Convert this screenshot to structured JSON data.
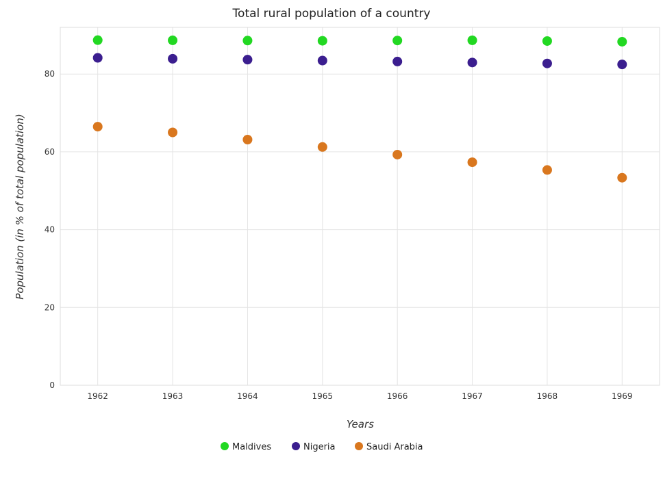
{
  "chart_data": {
    "type": "scatter",
    "title": "Total rural population of a country",
    "xlabel": "Years",
    "ylabel": "Population (in % of total population)",
    "categories": [
      "1962",
      "1963",
      "1964",
      "1965",
      "1966",
      "1967",
      "1968",
      "1969"
    ],
    "ylim": [
      0,
      92
    ],
    "yticks": [
      "0",
      "20",
      "40",
      "60",
      "80"
    ],
    "grid": true,
    "legend_position": "bottom-center",
    "series": [
      {
        "name": "Maldives",
        "color": "#22d822",
        "values": [
          88.72,
          88.67,
          88.61,
          88.55,
          88.62,
          88.68,
          88.49,
          88.31
        ]
      },
      {
        "name": "Nigeria",
        "color": "#3b1e8f",
        "values": [
          84.17,
          83.93,
          83.7,
          83.46,
          83.22,
          82.97,
          82.73,
          82.48
        ]
      },
      {
        "name": "Saudi Arabia",
        "color": "#d9771e",
        "values": [
          66.48,
          65.0,
          63.15,
          61.25,
          59.29,
          57.33,
          55.34,
          53.35
        ]
      }
    ]
  }
}
